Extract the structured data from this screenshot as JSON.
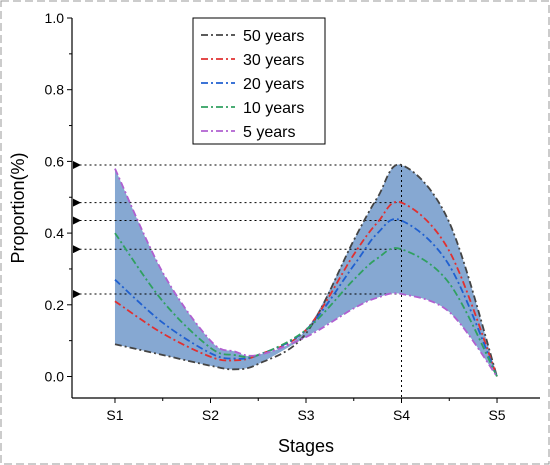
{
  "chart_data": {
    "type": "line",
    "categories": [
      "S1",
      "S2",
      "S3",
      "S4",
      "S5"
    ],
    "xlabel": "Stages",
    "ylabel": "Proportion(%)",
    "ylim": [
      -0.06,
      1.0
    ],
    "yticks": [
      0.0,
      0.2,
      0.4,
      0.6,
      0.8,
      1.0
    ],
    "ytick_labels": [
      "0.0",
      "0.2",
      "0.4",
      "0.6",
      "0.8",
      "1.0"
    ],
    "legend_position": "top-center",
    "band_color": "#7fa3d0",
    "series": [
      {
        "name": "50 years",
        "color": "#444444",
        "x": [
          1,
          1.5,
          2,
          2.25,
          2.5,
          3,
          3.5,
          3.75,
          4,
          4.5,
          5
        ],
        "y": [
          0.09,
          0.06,
          0.03,
          0.02,
          0.035,
          0.12,
          0.38,
          0.5,
          0.59,
          0.43,
          0.0
        ]
      },
      {
        "name": "30 years",
        "color": "#e03030",
        "x": [
          1,
          1.5,
          2,
          2.25,
          2.5,
          3,
          3.5,
          3.75,
          4,
          4.5,
          5
        ],
        "y": [
          0.21,
          0.12,
          0.055,
          0.045,
          0.06,
          0.13,
          0.34,
          0.43,
          0.485,
          0.35,
          0.0
        ]
      },
      {
        "name": "20 years",
        "color": "#2060d0",
        "x": [
          1,
          1.5,
          2,
          2.25,
          2.5,
          3,
          3.5,
          3.75,
          4,
          4.5,
          5
        ],
        "y": [
          0.27,
          0.15,
          0.065,
          0.05,
          0.06,
          0.13,
          0.31,
          0.4,
          0.435,
          0.31,
          0.0
        ]
      },
      {
        "name": "10 years",
        "color": "#30a060",
        "x": [
          1,
          1.5,
          2,
          2.25,
          2.5,
          3,
          3.5,
          3.75,
          4,
          4.5,
          5
        ],
        "y": [
          0.4,
          0.21,
          0.08,
          0.06,
          0.06,
          0.13,
          0.27,
          0.33,
          0.355,
          0.26,
          0.0
        ]
      },
      {
        "name": "5 years",
        "color": "#b060d0",
        "x": [
          1,
          1.5,
          2,
          2.25,
          2.5,
          3,
          3.5,
          3.75,
          4,
          4.5,
          5
        ],
        "y": [
          0.58,
          0.29,
          0.1,
          0.07,
          0.06,
          0.11,
          0.19,
          0.22,
          0.23,
          0.18,
          0.0
        ]
      }
    ],
    "reference_lines": {
      "vertical_x": 4,
      "horizontal_y": [
        0.59,
        0.485,
        0.435,
        0.355,
        0.23
      ]
    }
  }
}
